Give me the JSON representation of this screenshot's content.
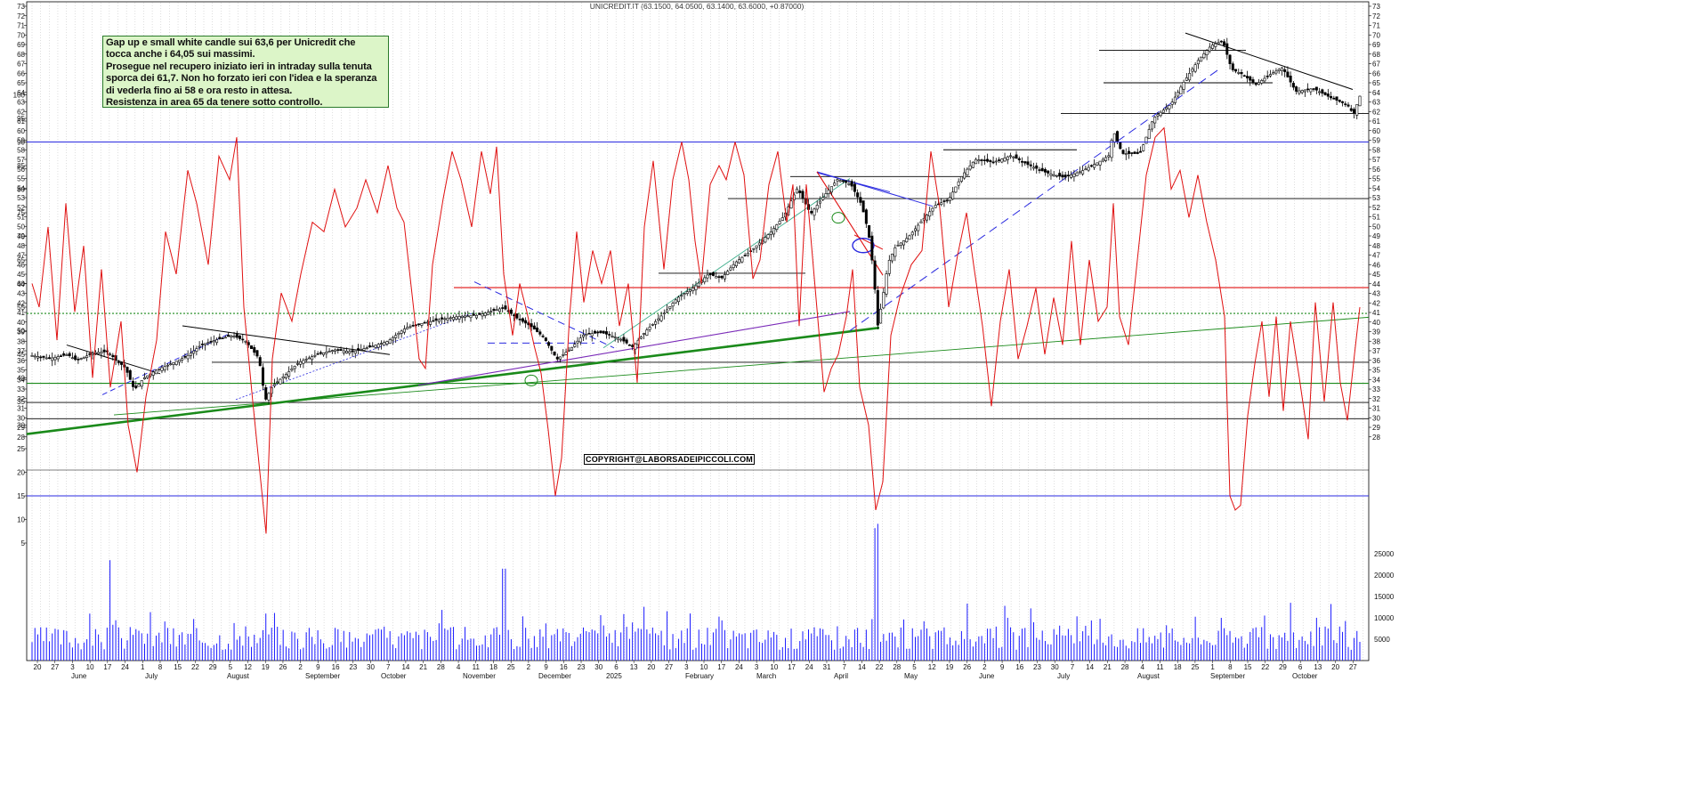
{
  "ticker_header": "UNICREDIT.IT (63.1500, 64.0500, 63.1400, 63.6000, +0.87000)",
  "annotation": {
    "lines": [
      "Gap up e small white candle sui 63,6 per Unicredit che",
      "tocca anche i 64,05 sui massimi.",
      "Prosegue nel recupero iniziato ieri in intraday sulla tenuta",
      "sporca dei 61,7. Non ho forzato ieri con l'idea e la speranza",
      "di vederla fino ai 58 e ora resto in attesa.",
      "Resistenza in area 65 da tenere sotto controllo."
    ]
  },
  "copyright": "COPYRIGHT@LABORSADEIPICCOLI.COM",
  "colors": {
    "candle": "#000000",
    "rsi": "#e01010",
    "volume": "#1a1aff",
    "support_green": "#1a8a1a",
    "trend_blue": "#2a2ae0",
    "trend_red": "#e01010",
    "trend_purple": "#7a2ab8",
    "annotation_bg": "#dcf5c8"
  },
  "chart_data": {
    "type": "candlestick",
    "title": "UNICREDIT.IT (63.1500, 64.0500, 63.1400, 63.6000, +0.87000)",
    "last": {
      "open": 63.15,
      "high": 64.05,
      "low": 63.14,
      "close": 63.6,
      "change": 0.87
    },
    "price_axis": {
      "min": 28,
      "max": 73,
      "ticks": [
        28,
        29,
        30,
        31,
        32,
        33,
        34,
        35,
        36,
        37,
        38,
        39,
        40,
        41,
        42,
        43,
        44,
        45,
        46,
        47,
        48,
        49,
        50,
        51,
        52,
        53,
        54,
        55,
        56,
        57,
        58,
        59,
        60,
        61,
        62,
        63,
        64,
        65,
        66,
        67,
        68,
        69,
        70,
        71,
        72,
        73
      ]
    },
    "oscillator_axis": {
      "min": 0,
      "max": 100,
      "ticks": [
        5,
        10,
        15,
        20,
        25,
        30,
        35,
        40,
        45,
        50,
        55,
        60,
        65,
        70,
        75,
        80,
        85,
        90,
        95,
        100
      ],
      "overbought": 90,
      "oversold": 15
    },
    "volume_axis": {
      "ticks": [
        5000,
        10000,
        15000,
        20000,
        25000
      ]
    },
    "x_day_labels": [
      "20",
      "27",
      "3",
      "10",
      "17",
      "24",
      "1",
      "8",
      "15",
      "22",
      "29",
      "5",
      "12",
      "19",
      "26",
      "2",
      "9",
      "16",
      "23",
      "30",
      "7",
      "14",
      "21",
      "28",
      "4",
      "11",
      "18",
      "25",
      "2",
      "9",
      "16",
      "23",
      "30",
      "6",
      "13",
      "20",
      "27",
      "3",
      "10",
      "17",
      "24",
      "3",
      "10",
      "17",
      "24",
      "31",
      "7",
      "14",
      "22",
      "28",
      "5",
      "12",
      "19",
      "26",
      "2",
      "9",
      "16",
      "23",
      "30",
      "7",
      "14",
      "21",
      "28",
      "4",
      "11",
      "18",
      "25",
      "1",
      "8",
      "15",
      "22",
      "29",
      "6",
      "13",
      "20",
      "27"
    ],
    "x_month_labels": [
      "June",
      "July",
      "August",
      "September",
      "October",
      "November",
      "December",
      "2025",
      "February",
      "March",
      "April",
      "May",
      "June",
      "July",
      "August",
      "September",
      "October"
    ],
    "horizontal_levels": [
      {
        "value": 68.4,
        "color": "#000000"
      },
      {
        "value": 65.0,
        "color": "#000000"
      },
      {
        "value": 61.8,
        "color": "#000000"
      },
      {
        "value": 58.0,
        "color": "#000000"
      },
      {
        "value": 55.2,
        "color": "#000000"
      },
      {
        "value": 52.9,
        "color": "#000000"
      },
      {
        "value": 45.1,
        "color": "#000000"
      },
      {
        "value": 43.6,
        "color": "#e01010"
      },
      {
        "value": 40.9,
        "color": "#1a8a1a",
        "style": "dotted"
      },
      {
        "value": 35.8,
        "color": "#000000"
      },
      {
        "value": 33.6,
        "color": "#1a8a1a"
      },
      {
        "value": 31.6,
        "color": "#000000"
      },
      {
        "value": 29.9,
        "color": "#000000"
      }
    ],
    "price_path": [
      [
        0,
        36.5
      ],
      [
        20,
        36.2
      ],
      [
        40,
        36.6
      ],
      [
        50,
        36.0
      ],
      [
        70,
        36.8
      ],
      [
        85,
        36.9
      ],
      [
        95,
        36.0
      ],
      [
        105,
        35.2
      ],
      [
        115,
        32.9
      ],
      [
        125,
        34.1
      ],
      [
        140,
        35.0
      ],
      [
        160,
        35.8
      ],
      [
        175,
        36.5
      ],
      [
        190,
        37.6
      ],
      [
        205,
        38.1
      ],
      [
        225,
        38.6
      ],
      [
        240,
        38.0
      ],
      [
        255,
        36.2
      ],
      [
        262,
        31.8
      ],
      [
        270,
        33.3
      ],
      [
        285,
        34.5
      ],
      [
        300,
        35.8
      ],
      [
        320,
        36.6
      ],
      [
        340,
        37.1
      ],
      [
        360,
        36.9
      ],
      [
        380,
        37.4
      ],
      [
        400,
        38.0
      ],
      [
        420,
        39.4
      ],
      [
        440,
        39.9
      ],
      [
        460,
        40.3
      ],
      [
        480,
        40.6
      ],
      [
        500,
        40.7
      ],
      [
        515,
        41.1
      ],
      [
        530,
        41.5
      ],
      [
        545,
        40.4
      ],
      [
        560,
        39.6
      ],
      [
        575,
        38.4
      ],
      [
        590,
        36.1
      ],
      [
        605,
        37.2
      ],
      [
        620,
        38.7
      ],
      [
        640,
        38.9
      ],
      [
        660,
        38.3
      ],
      [
        675,
        37.4
      ],
      [
        690,
        39.1
      ],
      [
        710,
        40.9
      ],
      [
        725,
        42.5
      ],
      [
        745,
        43.7
      ],
      [
        760,
        45.0
      ],
      [
        775,
        44.6
      ],
      [
        790,
        46.2
      ],
      [
        810,
        47.6
      ],
      [
        830,
        49.4
      ],
      [
        845,
        51.1
      ],
      [
        860,
        54.0
      ],
      [
        875,
        51.3
      ],
      [
        890,
        53.2
      ],
      [
        905,
        54.9
      ],
      [
        920,
        54.4
      ],
      [
        932,
        52.3
      ],
      [
        940,
        49.3
      ],
      [
        946,
        44.9
      ],
      [
        950,
        39.5
      ],
      [
        956,
        42.6
      ],
      [
        962,
        46.2
      ],
      [
        970,
        47.8
      ],
      [
        985,
        48.9
      ],
      [
        1000,
        50.6
      ],
      [
        1015,
        52.2
      ],
      [
        1030,
        52.8
      ],
      [
        1045,
        55.3
      ],
      [
        1060,
        57.0
      ],
      [
        1080,
        56.7
      ],
      [
        1100,
        57.4
      ],
      [
        1120,
        56.4
      ],
      [
        1140,
        55.6
      ],
      [
        1160,
        55.1
      ],
      [
        1180,
        55.8
      ],
      [
        1200,
        56.8
      ],
      [
        1210,
        57.4
      ],
      [
        1215,
        60.0
      ],
      [
        1225,
        57.6
      ],
      [
        1245,
        57.6
      ],
      [
        1260,
        61.3
      ],
      [
        1280,
        62.8
      ],
      [
        1295,
        65.2
      ],
      [
        1310,
        67.3
      ],
      [
        1325,
        68.9
      ],
      [
        1338,
        69.4
      ],
      [
        1348,
        66.4
      ],
      [
        1360,
        65.9
      ],
      [
        1375,
        64.8
      ],
      [
        1390,
        65.8
      ],
      [
        1405,
        66.6
      ],
      [
        1420,
        64.1
      ],
      [
        1440,
        64.4
      ],
      [
        1460,
        63.4
      ],
      [
        1478,
        62.7
      ],
      [
        1485,
        61.7
      ],
      [
        1492,
        63.6
      ]
    ],
    "rsi_series": [
      [
        0,
        60
      ],
      [
        8,
        55
      ],
      [
        18,
        72
      ],
      [
        28,
        48
      ],
      [
        38,
        77
      ],
      [
        48,
        54
      ],
      [
        58,
        68
      ],
      [
        68,
        40
      ],
      [
        78,
        63
      ],
      [
        88,
        38
      ],
      [
        100,
        52
      ],
      [
        108,
        30
      ],
      [
        118,
        20
      ],
      [
        128,
        36
      ],
      [
        140,
        48
      ],
      [
        150,
        71
      ],
      [
        162,
        62
      ],
      [
        175,
        84
      ],
      [
        185,
        77
      ],
      [
        198,
        64
      ],
      [
        210,
        87
      ],
      [
        222,
        82
      ],
      [
        230,
        91
      ],
      [
        238,
        55
      ],
      [
        248,
        35
      ],
      [
        256,
        20
      ],
      [
        263,
        7
      ],
      [
        270,
        44
      ],
      [
        280,
        58
      ],
      [
        292,
        52
      ],
      [
        302,
        62
      ],
      [
        315,
        73
      ],
      [
        328,
        71
      ],
      [
        340,
        80
      ],
      [
        352,
        72
      ],
      [
        365,
        76
      ],
      [
        375,
        82
      ],
      [
        388,
        75
      ],
      [
        400,
        85
      ],
      [
        410,
        76
      ],
      [
        418,
        73
      ],
      [
        428,
        56
      ],
      [
        435,
        44
      ],
      [
        442,
        42
      ],
      [
        450,
        64
      ],
      [
        462,
        78
      ],
      [
        472,
        88
      ],
      [
        482,
        82
      ],
      [
        494,
        72
      ],
      [
        505,
        88
      ],
      [
        515,
        79
      ],
      [
        522,
        89
      ],
      [
        530,
        62
      ],
      [
        540,
        49
      ],
      [
        548,
        60
      ],
      [
        556,
        54
      ],
      [
        564,
        47
      ],
      [
        572,
        41
      ],
      [
        580,
        29
      ],
      [
        588,
        15
      ],
      [
        595,
        23
      ],
      [
        604,
        53
      ],
      [
        612,
        71
      ],
      [
        620,
        56
      ],
      [
        630,
        67
      ],
      [
        640,
        60
      ],
      [
        650,
        67
      ],
      [
        660,
        51
      ],
      [
        670,
        60
      ],
      [
        680,
        39
      ],
      [
        688,
        72
      ],
      [
        698,
        86
      ],
      [
        710,
        63
      ],
      [
        720,
        82
      ],
      [
        730,
        90
      ],
      [
        738,
        82
      ],
      [
        745,
        69
      ],
      [
        752,
        60
      ],
      [
        762,
        81
      ],
      [
        772,
        85
      ],
      [
        780,
        82
      ],
      [
        790,
        90
      ],
      [
        800,
        83
      ],
      [
        810,
        61
      ],
      [
        818,
        65
      ],
      [
        828,
        81
      ],
      [
        838,
        88
      ],
      [
        848,
        73
      ],
      [
        855,
        81
      ],
      [
        862,
        51
      ],
      [
        870,
        81
      ],
      [
        880,
        59
      ],
      [
        890,
        37
      ],
      [
        898,
        42
      ],
      [
        906,
        45
      ],
      [
        915,
        53
      ],
      [
        922,
        63
      ],
      [
        930,
        38
      ],
      [
        940,
        30
      ],
      [
        948,
        12
      ],
      [
        956,
        18
      ],
      [
        965,
        49
      ],
      [
        975,
        57
      ],
      [
        988,
        64
      ],
      [
        1000,
        67
      ],
      [
        1010,
        88
      ],
      [
        1020,
        76
      ],
      [
        1030,
        55
      ],
      [
        1040,
        66
      ],
      [
        1050,
        75
      ],
      [
        1058,
        64
      ],
      [
        1068,
        51
      ],
      [
        1078,
        34
      ],
      [
        1088,
        52
      ],
      [
        1098,
        63
      ],
      [
        1108,
        44
      ],
      [
        1118,
        51
      ],
      [
        1128,
        59
      ],
      [
        1138,
        45
      ],
      [
        1148,
        57
      ],
      [
        1158,
        47
      ],
      [
        1168,
        69
      ],
      [
        1178,
        47
      ],
      [
        1188,
        65
      ],
      [
        1198,
        52
      ],
      [
        1208,
        55
      ],
      [
        1215,
        77
      ],
      [
        1222,
        53
      ],
      [
        1232,
        47
      ],
      [
        1242,
        65
      ],
      [
        1252,
        83
      ],
      [
        1262,
        91
      ],
      [
        1272,
        93
      ],
      [
        1280,
        80
      ],
      [
        1290,
        84
      ],
      [
        1300,
        74
      ],
      [
        1310,
        83
      ],
      [
        1320,
        73
      ],
      [
        1330,
        65
      ],
      [
        1340,
        53
      ],
      [
        1346,
        15
      ],
      [
        1352,
        12
      ],
      [
        1358,
        13
      ],
      [
        1366,
        32
      ],
      [
        1374,
        43
      ],
      [
        1382,
        52
      ],
      [
        1390,
        36
      ],
      [
        1398,
        53
      ],
      [
        1406,
        33
      ],
      [
        1414,
        52
      ],
      [
        1424,
        40
      ],
      [
        1434,
        27
      ],
      [
        1442,
        56
      ],
      [
        1452,
        35
      ],
      [
        1462,
        56
      ],
      [
        1470,
        39
      ],
      [
        1478,
        31
      ],
      [
        1486,
        45
      ],
      [
        1492,
        55
      ]
    ],
    "volume_profile": {
      "baseline_units": 0,
      "spike_bars": [
        [
          88,
          23500
        ],
        [
          263,
          11000
        ],
        [
          530,
          21500
        ],
        [
          947,
          31000
        ],
        [
          951,
          32000
        ],
        [
          1337,
          10000
        ]
      ]
    }
  }
}
